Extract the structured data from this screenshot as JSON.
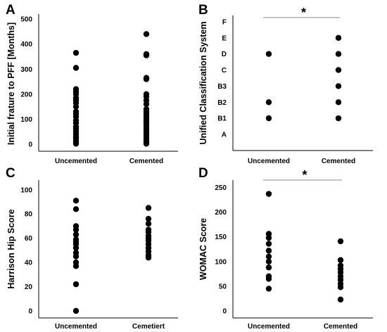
{
  "chart_data": [
    {
      "panel": "A",
      "type": "scatter",
      "ylabel": "Initial frature to PFF [Months]",
      "xlabel": "",
      "categories": [
        "Uncemented",
        "Cemented"
      ],
      "yticks": [
        "0",
        "100",
        "200",
        "300",
        "400",
        "500"
      ],
      "ylim": [
        0,
        520
      ],
      "series": [
        {
          "category": "Uncemented",
          "values": [
            365,
            305,
            220,
            210,
            200,
            185,
            175,
            165,
            150,
            130,
            120,
            110,
            95,
            85,
            70,
            60,
            50,
            40,
            30,
            25,
            15,
            8,
            2
          ]
        },
        {
          "category": "Cemented",
          "values": [
            440,
            360,
            355,
            265,
            260,
            200,
            190,
            175,
            160,
            140,
            130,
            120,
            110,
            100,
            92,
            85,
            75,
            65,
            55,
            45,
            35,
            25,
            15,
            8,
            2
          ]
        }
      ],
      "significance": null
    },
    {
      "panel": "B",
      "type": "scatter",
      "ylabel": "Unified Classification System",
      "xlabel": "",
      "categories": [
        "Uncemented",
        "Cemented"
      ],
      "yticks": [
        "A",
        "B1",
        "B2",
        "B3",
        "C",
        "D",
        "E",
        "F"
      ],
      "series": [
        {
          "category": "Uncemented",
          "values": [
            "D",
            "B2",
            "B1"
          ]
        },
        {
          "category": "Cemented",
          "values": [
            "E",
            "D",
            "C",
            "B3",
            "B2",
            "B1"
          ]
        }
      ],
      "significance": "*"
    },
    {
      "panel": "C",
      "type": "scatter",
      "ylabel": "Harrison Hip Score",
      "xlabel": "",
      "categories": [
        "Uncemented",
        "Cemetiert"
      ],
      "yticks": [
        "0",
        "20",
        "40",
        "60",
        "80",
        "100"
      ],
      "ylim": [
        0,
        108
      ],
      "series": [
        {
          "category": "Uncemented",
          "values": [
            91,
            84,
            70,
            67,
            63,
            59,
            57,
            55,
            52,
            48,
            45,
            40,
            37,
            22,
            0
          ]
        },
        {
          "category": "Cemetiert",
          "values": [
            85,
            76,
            72,
            67,
            65,
            62,
            60,
            58,
            55,
            52,
            49,
            46,
            44
          ]
        }
      ],
      "significance": null
    },
    {
      "panel": "D",
      "type": "scatter",
      "ylabel": "WOMAC Score",
      "xlabel": "",
      "categories": [
        "Uncemented",
        "Cemented"
      ],
      "yticks": [
        "0",
        "50",
        "100",
        "150",
        "200",
        "250"
      ],
      "ylim": [
        0,
        265
      ],
      "series": [
        {
          "category": "Uncemented",
          "values": [
            237,
            156,
            148,
            136,
            122,
            110,
            100,
            88,
            70,
            65,
            45
          ]
        },
        {
          "category": "Cemented",
          "values": [
            141,
            103,
            92,
            85,
            78,
            70,
            63,
            55,
            48,
            23
          ]
        }
      ],
      "significance": "*"
    }
  ]
}
